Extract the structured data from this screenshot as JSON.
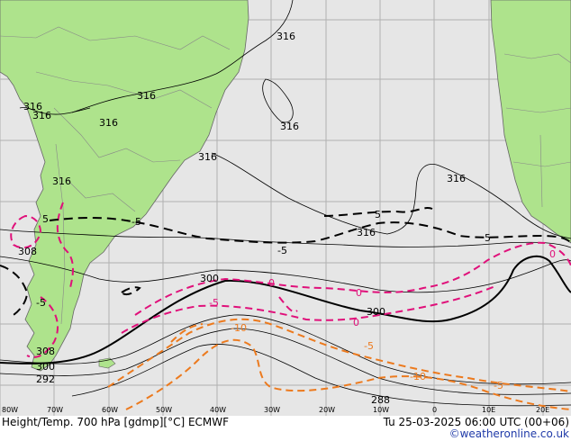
{
  "map": {
    "title": "Height/Temp. 700 hPa [gdmp][°C] ECMWF",
    "valid_time": "Tu 25-03-2025 06:00 UTC (00+06)",
    "credit": "©weatheronline.co.uk",
    "colors": {
      "ocean": "#e6e6e6",
      "land": "#aee38c",
      "border": "#888888",
      "height_contour": "#000000",
      "temp_magenta": "#e0107a",
      "temp_orange": "#ec7a1e"
    },
    "longitude_labels": [
      "80W",
      "70W",
      "60W",
      "50W",
      "40W",
      "30W",
      "20W",
      "10W",
      "0",
      "10E",
      "20E"
    ],
    "height_labels": [
      "316",
      "316",
      "316",
      "316",
      "316",
      "316",
      "316",
      "316",
      "316",
      "316",
      "308",
      "308",
      "300",
      "300",
      "300",
      "292",
      "288"
    ],
    "temp_labels": [
      "5",
      "-5",
      "5",
      "-5",
      "5",
      "0",
      "0",
      "0",
      "0",
      "-5",
      "-5",
      "-5",
      "-5",
      "-10",
      "-10"
    ]
  }
}
